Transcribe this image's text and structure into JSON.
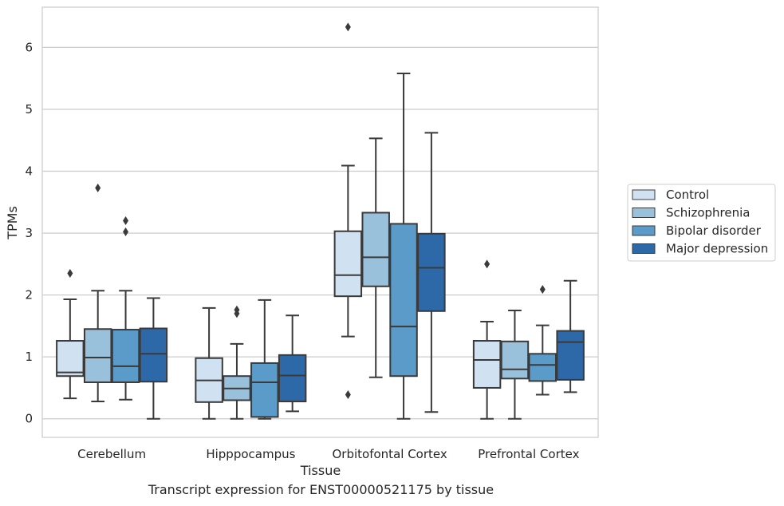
{
  "caption": "Transcript expression for ENST00000521175 by tissue",
  "chart_data": {
    "type": "box",
    "xlabel": "Tissue",
    "ylabel": "TPMs",
    "ylim": [
      -0.3,
      6.65
    ],
    "yticks": [
      0,
      1,
      2,
      3,
      4,
      5,
      6
    ],
    "grid": "horizontal",
    "legend_position": "right",
    "categories": [
      "Cerebellum",
      "Hipppocampus",
      "Orbitofontal Cortex",
      "Prefrontal Cortex"
    ],
    "series": [
      {
        "name": "Control",
        "color": "#d0e1f2",
        "boxes": [
          {
            "whislo": 0.33,
            "q1": 0.69,
            "med": 0.75,
            "q3": 1.26,
            "whishi": 1.93,
            "fliers": [
              2.35
            ]
          },
          {
            "whislo": 0.0,
            "q1": 0.27,
            "med": 0.62,
            "q3": 0.98,
            "whishi": 1.79,
            "fliers": []
          },
          {
            "whislo": 1.33,
            "q1": 1.98,
            "med": 2.32,
            "q3": 3.03,
            "whishi": 4.09,
            "fliers": [
              0.39,
              6.33
            ]
          },
          {
            "whislo": 0.0,
            "q1": 0.5,
            "med": 0.95,
            "q3": 1.26,
            "whishi": 1.57,
            "fliers": [
              2.5
            ]
          }
        ]
      },
      {
        "name": "Schizophrenia",
        "color": "#9ac1dc",
        "boxes": [
          {
            "whislo": 0.28,
            "q1": 0.59,
            "med": 0.99,
            "q3": 1.45,
            "whishi": 2.07,
            "fliers": [
              3.73
            ]
          },
          {
            "whislo": 0.0,
            "q1": 0.3,
            "med": 0.49,
            "q3": 0.69,
            "whishi": 1.21,
            "fliers": [
              1.7,
              1.76
            ]
          },
          {
            "whislo": 0.67,
            "q1": 2.14,
            "med": 2.61,
            "q3": 3.33,
            "whishi": 4.53,
            "fliers": []
          },
          {
            "whislo": 0.0,
            "q1": 0.65,
            "med": 0.8,
            "q3": 1.25,
            "whishi": 1.75,
            "fliers": []
          }
        ]
      },
      {
        "name": "Bipolar disorder",
        "color": "#5a9bc9",
        "boxes": [
          {
            "whislo": 0.31,
            "q1": 0.59,
            "med": 0.85,
            "q3": 1.44,
            "whishi": 2.07,
            "fliers": [
              3.02,
              3.2
            ]
          },
          {
            "whislo": 0.0,
            "q1": 0.03,
            "med": 0.59,
            "q3": 0.9,
            "whishi": 1.92,
            "fliers": []
          },
          {
            "whislo": 0.0,
            "q1": 0.69,
            "med": 1.49,
            "q3": 3.15,
            "whishi": 5.58,
            "fliers": []
          },
          {
            "whislo": 0.39,
            "q1": 0.61,
            "med": 0.87,
            "q3": 1.05,
            "whishi": 1.51,
            "fliers": [
              2.09
            ]
          }
        ]
      },
      {
        "name": "Major depression",
        "color": "#2d69a8",
        "boxes": [
          {
            "whislo": 0.0,
            "q1": 0.6,
            "med": 1.05,
            "q3": 1.46,
            "whishi": 1.95,
            "fliers": []
          },
          {
            "whislo": 0.12,
            "q1": 0.28,
            "med": 0.7,
            "q3": 1.03,
            "whishi": 1.67,
            "fliers": []
          },
          {
            "whislo": 0.11,
            "q1": 1.74,
            "med": 2.44,
            "q3": 2.99,
            "whishi": 4.62,
            "fliers": []
          },
          {
            "whislo": 0.43,
            "q1": 0.63,
            "med": 1.24,
            "q3": 1.42,
            "whishi": 2.23,
            "fliers": []
          }
        ]
      }
    ]
  }
}
